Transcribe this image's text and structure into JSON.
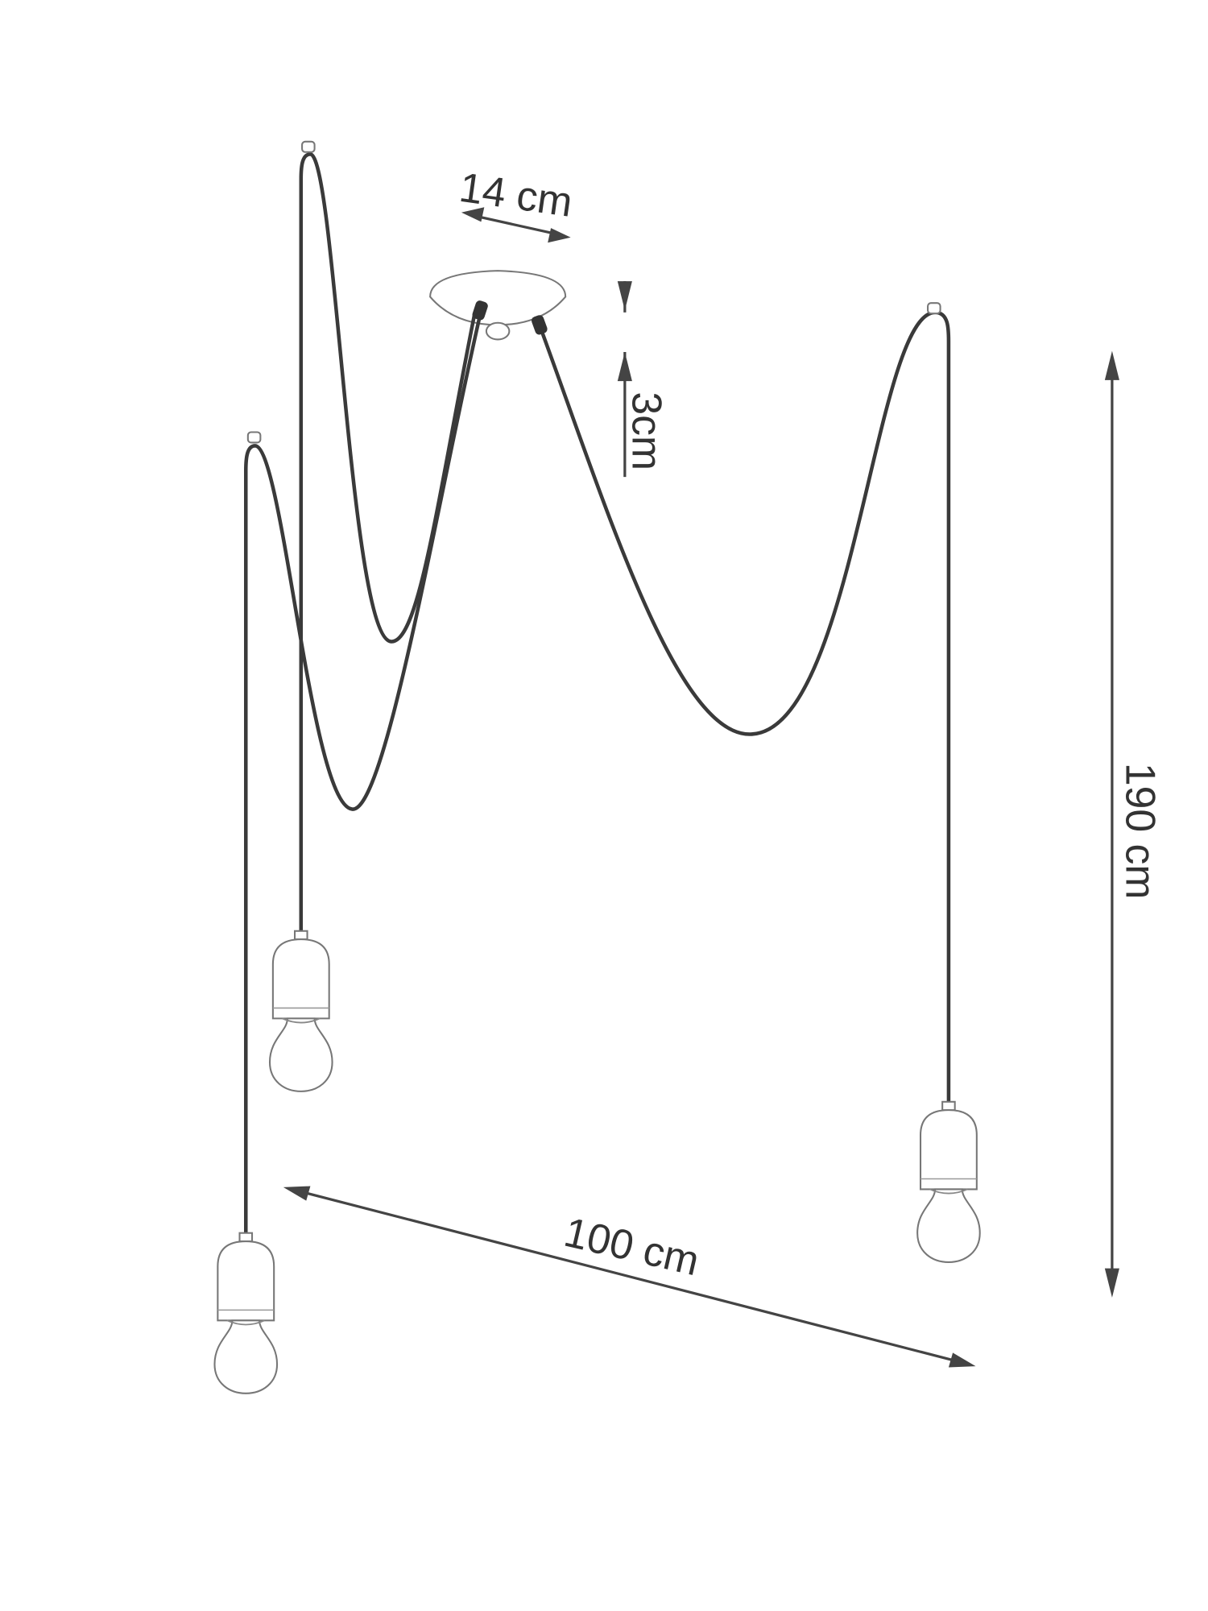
{
  "labels": {
    "top_width": "14 cm",
    "canopy_height": "3cm",
    "height": "190 cm",
    "width": "100 cm"
  }
}
